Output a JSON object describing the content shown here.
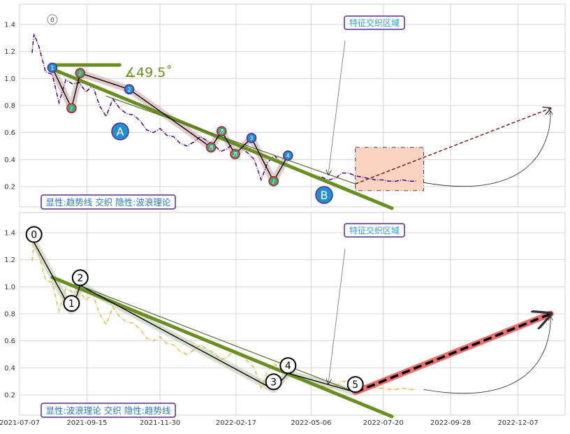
{
  "charts": {
    "top": {
      "caption": "显性:趋势线 交织 隐性:波浪理论",
      "annotation": "特征交织区域",
      "angle_label": "∡49.5˚",
      "point_A": "A",
      "point_B": "B",
      "wave_start_label": "0"
    },
    "bottom": {
      "caption": "显性:波浪理论 交织 隐性:趋势线",
      "annotation": "特征交织区域",
      "wave_labels": [
        "0",
        "1",
        "2",
        "3",
        "4",
        "5"
      ]
    }
  },
  "chart_data": [
    {
      "type": "line",
      "panel": "top",
      "x_type": "date",
      "x": [
        "2021-07-20",
        "2021-07-22",
        "2021-07-27",
        "2021-08-03",
        "2021-08-10",
        "2021-08-17",
        "2021-08-24",
        "2021-08-31",
        "2021-09-07",
        "2021-09-14",
        "2021-09-21",
        "2021-09-28",
        "2021-10-05",
        "2021-10-12",
        "2021-10-19",
        "2021-10-26",
        "2021-11-02",
        "2021-11-09",
        "2021-11-16",
        "2021-11-23",
        "2021-11-30",
        "2021-12-07",
        "2021-12-14",
        "2021-12-21",
        "2021-12-28",
        "2022-01-04",
        "2022-01-11",
        "2022-01-18",
        "2022-01-25",
        "2022-02-01",
        "2022-02-08",
        "2022-02-15",
        "2022-02-22",
        "2022-03-01",
        "2022-03-08",
        "2022-03-15",
        "2022-03-22",
        "2022-03-29",
        "2022-04-05",
        "2022-04-12",
        "2022-04-19",
        "2022-04-26",
        "2022-05-03",
        "2022-05-10",
        "2022-05-17",
        "2022-05-24",
        "2022-05-31",
        "2022-06-07",
        "2022-06-14",
        "2022-06-21",
        "2022-06-28",
        "2022-07-05",
        "2022-07-12",
        "2022-07-19",
        "2022-07-26",
        "2022-08-02",
        "2022-08-09",
        "2022-08-16",
        "2022-08-23"
      ],
      "series": [
        {
          "values": [
            1.19,
            1.33,
            1.24,
            1.05,
            1.03,
            0.82,
            0.99,
            0.96,
            0.97,
            0.9,
            0.95,
            0.8,
            0.72,
            0.85,
            0.78,
            0.74,
            0.73,
            0.69,
            0.62,
            0.6,
            0.63,
            0.58,
            0.57,
            0.52,
            0.5,
            0.53,
            0.57,
            0.54,
            0.51,
            0.46,
            0.48,
            0.53,
            0.49,
            0.45,
            0.4,
            0.25,
            0.38,
            0.43,
            0.37,
            0.35,
            0.34,
            0.31,
            0.3,
            0.28,
            0.27,
            0.25,
            0.26,
            0.3,
            0.3,
            0.28,
            0.27,
            0.26,
            0.25,
            0.25,
            0.24,
            0.24,
            0.25,
            0.24,
            0.24
          ]
        }
      ],
      "overlay_segments": [
        {
          "x1": "2021-08-10",
          "y1": 1.1,
          "x2": "2021-10-19",
          "y2": 1.1
        },
        {
          "x1": "2021-08-10",
          "y1": 1.07,
          "x2": "2022-07-29",
          "y2": 0.04
        },
        {
          "x1": "2021-10-05",
          "y1": 0.87,
          "x2": "2022-06-21",
          "y2": 0.22
        }
      ],
      "projection": {
        "x1": "2022-06-21",
        "y1": 0.22,
        "x2": "2023-01-10",
        "y2": 0.78
      },
      "highlight_box": {
        "x1": "2022-06-21",
        "x2": "2022-08-31",
        "y1": 0.17,
        "y2": 0.49
      },
      "wave_points": [
        {
          "label": "1",
          "x": "2021-08-10",
          "y": 1.08
        },
        {
          "label": "♪",
          "x": "2021-08-30",
          "y": 0.78
        },
        {
          "label": "♪",
          "x": "2021-09-08",
          "y": 1.04
        },
        {
          "label": "2",
          "x": "2021-10-29",
          "y": 0.92
        },
        {
          "label": "♬",
          "x": "2022-01-22",
          "y": 0.49
        },
        {
          "label": "♬",
          "x": "2022-02-02",
          "y": 0.61
        },
        {
          "label": "♬",
          "x": "2022-02-16",
          "y": 0.44
        },
        {
          "label": "3",
          "x": "2022-03-05",
          "y": 0.56
        },
        {
          "label": "♪",
          "x": "2022-03-28",
          "y": 0.24
        },
        {
          "label": "4",
          "x": "2022-04-12",
          "y": 0.43
        }
      ],
      "xlim": [
        "2021-07-07",
        "2023-01-25"
      ],
      "ylim": [
        0.05,
        1.55
      ],
      "yticks": [
        0.2,
        0.4,
        0.6,
        0.8,
        1.0,
        1.2,
        1.4
      ],
      "grid": true
    },
    {
      "type": "line",
      "panel": "bottom",
      "x_type": "date",
      "x": [
        "2021-07-20",
        "2021-07-22",
        "2021-07-27",
        "2021-08-03",
        "2021-08-10",
        "2021-08-17",
        "2021-08-24",
        "2021-08-31",
        "2021-09-07",
        "2021-09-14",
        "2021-09-21",
        "2021-09-28",
        "2021-10-05",
        "2021-10-12",
        "2021-10-19",
        "2021-10-26",
        "2021-11-02",
        "2021-11-09",
        "2021-11-16",
        "2021-11-23",
        "2021-11-30",
        "2021-12-07",
        "2021-12-14",
        "2021-12-21",
        "2021-12-28",
        "2022-01-04",
        "2022-01-11",
        "2022-01-18",
        "2022-01-25",
        "2022-02-01",
        "2022-02-08",
        "2022-02-15",
        "2022-02-22",
        "2022-03-01",
        "2022-03-08",
        "2022-03-15",
        "2022-03-22",
        "2022-03-29",
        "2022-04-05",
        "2022-04-12",
        "2022-04-19",
        "2022-04-26",
        "2022-05-03",
        "2022-05-10",
        "2022-05-17",
        "2022-05-24",
        "2022-05-31",
        "2022-06-07",
        "2022-06-14",
        "2022-06-21",
        "2022-06-28",
        "2022-07-05",
        "2022-07-12",
        "2022-07-19",
        "2022-07-26",
        "2022-08-02",
        "2022-08-09",
        "2022-08-16",
        "2022-08-23"
      ],
      "series": [
        {
          "values": [
            1.19,
            1.33,
            1.24,
            1.05,
            1.03,
            0.82,
            0.99,
            0.96,
            0.97,
            0.9,
            0.95,
            0.8,
            0.72,
            0.85,
            0.78,
            0.74,
            0.73,
            0.69,
            0.62,
            0.6,
            0.63,
            0.58,
            0.57,
            0.52,
            0.5,
            0.53,
            0.57,
            0.54,
            0.51,
            0.46,
            0.48,
            0.53,
            0.49,
            0.45,
            0.4,
            0.25,
            0.38,
            0.43,
            0.37,
            0.35,
            0.34,
            0.31,
            0.3,
            0.28,
            0.27,
            0.25,
            0.26,
            0.3,
            0.3,
            0.28,
            0.27,
            0.26,
            0.25,
            0.25,
            0.24,
            0.24,
            0.25,
            0.24,
            0.24
          ]
        }
      ],
      "overlay_segments": [
        {
          "x1": "2021-08-10",
          "y1": 1.07,
          "x2": "2022-07-29",
          "y2": 0.04
        },
        {
          "x1": "2021-09-07",
          "y1": 1.01,
          "x2": "2022-06-21",
          "y2": 0.22
        }
      ],
      "projection": {
        "x1": "2022-06-21",
        "y1": 0.22,
        "x2": "2023-01-10",
        "y2": 0.8
      },
      "wave_points": [
        {
          "label": "0",
          "x": "2021-07-22",
          "y": 1.33
        },
        {
          "label": "1",
          "x": "2021-08-30",
          "y": 0.82
        },
        {
          "label": "2",
          "x": "2021-09-08",
          "y": 1.01
        },
        {
          "label": "3",
          "x": "2022-03-28",
          "y": 0.24
        },
        {
          "label": "4",
          "x": "2022-04-12",
          "y": 0.36
        },
        {
          "label": "5",
          "x": "2022-06-21",
          "y": 0.22
        }
      ],
      "xlim": [
        "2021-07-07",
        "2023-01-25"
      ],
      "ylim": [
        0.05,
        1.55
      ],
      "yticks": [
        0.2,
        0.4,
        0.6,
        0.8,
        1.0,
        1.2,
        1.4
      ],
      "xticks": [
        "2021-07-07",
        "2021-09-15",
        "2021-11-30",
        "2022-02-17",
        "2022-05-06",
        "2022-07-20",
        "2022-09-28",
        "2022-12-07"
      ],
      "grid": true
    }
  ],
  "colors": {
    "grid": "#d4d4d4",
    "trend": "#6b8e23",
    "trend_thin": "#556b2f",
    "price_top": "#4b0082",
    "price_bottom": "#e8b84a",
    "wave": "#000000",
    "wave_band": "#c9a0a0",
    "box_fill": "#fbd3c2",
    "point_blue": "#1f8fd3",
    "point_green": "#4aa37a",
    "point_edge": "#b22222",
    "caption_border": "#5a2a82",
    "caption_text": "#2779b8",
    "projection": "#e87070",
    "annotation_text": "#2aa0c8"
  }
}
